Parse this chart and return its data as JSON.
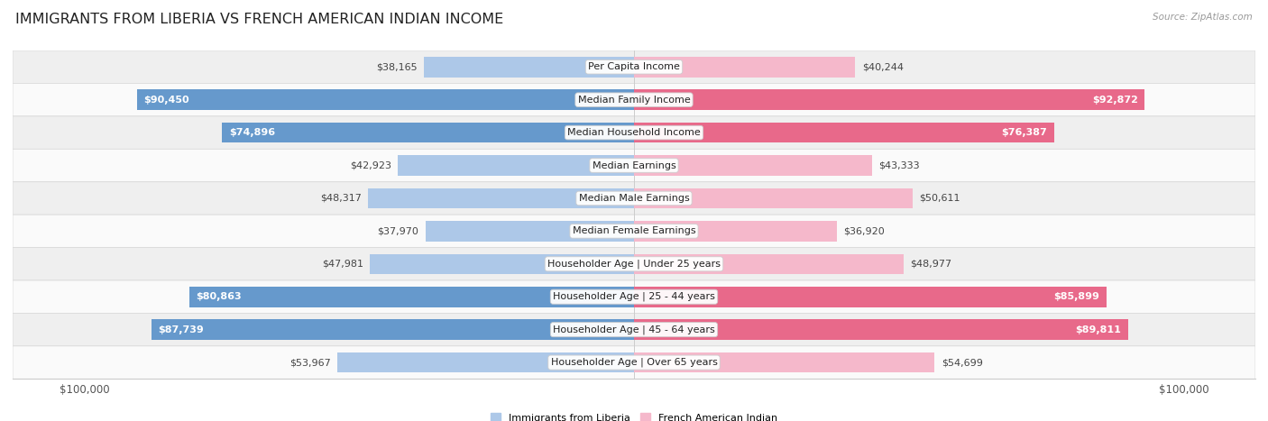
{
  "title": "IMMIGRANTS FROM LIBERIA VS FRENCH AMERICAN INDIAN INCOME",
  "source": "Source: ZipAtlas.com",
  "categories": [
    "Per Capita Income",
    "Median Family Income",
    "Median Household Income",
    "Median Earnings",
    "Median Male Earnings",
    "Median Female Earnings",
    "Householder Age | Under 25 years",
    "Householder Age | 25 - 44 years",
    "Householder Age | 45 - 64 years",
    "Householder Age | Over 65 years"
  ],
  "liberia_values": [
    38165,
    90450,
    74896,
    42923,
    48317,
    37970,
    47981,
    80863,
    87739,
    53967
  ],
  "french_values": [
    40244,
    92872,
    76387,
    43333,
    50611,
    36920,
    48977,
    85899,
    89811,
    54699
  ],
  "liberia_labels": [
    "$38,165",
    "$90,450",
    "$74,896",
    "$42,923",
    "$48,317",
    "$37,970",
    "$47,981",
    "$80,863",
    "$87,739",
    "$53,967"
  ],
  "french_labels": [
    "$40,244",
    "$92,872",
    "$76,387",
    "$43,333",
    "$50,611",
    "$36,920",
    "$48,977",
    "$85,899",
    "$89,811",
    "$54,699"
  ],
  "max_value": 100000,
  "liberia_color_light": "#adc8e8",
  "liberia_color_dark": "#6699cc",
  "french_color_light": "#f5b8cb",
  "french_color_dark": "#e8698a",
  "liberia_label": "Immigrants from Liberia",
  "french_label": "French American Indian",
  "row_bg_odd": "#efefef",
  "row_bg_even": "#fafafa",
  "bar_height": 0.62,
  "title_fontsize": 11.5,
  "label_fontsize": 8.0,
  "axis_fontsize": 8.5,
  "large_threshold": 60000
}
